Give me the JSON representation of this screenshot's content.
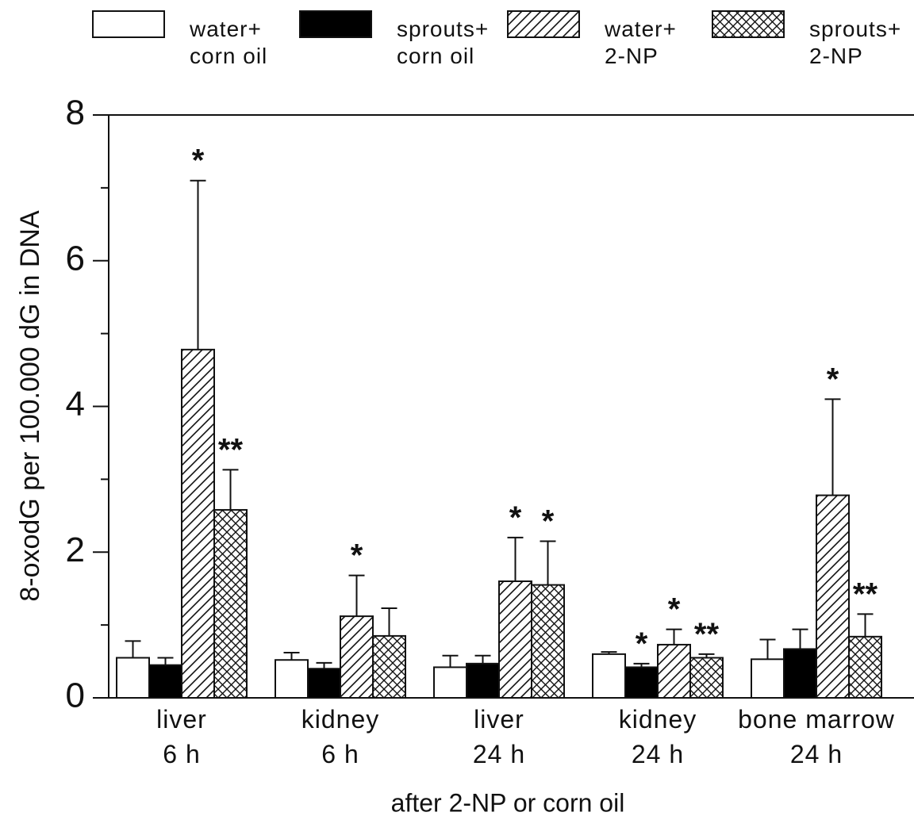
{
  "chart_data": {
    "type": "bar",
    "ylabel": "8-oxodG per 100.000 dG in DNA",
    "xlabel": "after 2-NP or corn oil",
    "categories": [
      "liver\n6 h",
      "kidney\n6 h",
      "liver\n24 h",
      "kidney\n24 h",
      "bone marrow\n24 h"
    ],
    "series": [
      {
        "name": "water+\ncorn oil",
        "color": "#ffffff",
        "pattern": "none",
        "values": [
          0.55,
          0.52,
          0.42,
          0.6,
          0.53
        ],
        "errors": [
          0.23,
          0.1,
          0.16,
          0.03,
          0.27
        ],
        "annotations": [
          null,
          null,
          null,
          null,
          null
        ]
      },
      {
        "name": "sprouts+\ncorn oil",
        "color": "#000000",
        "pattern": "none",
        "values": [
          0.45,
          0.4,
          0.47,
          0.42,
          0.67
        ],
        "errors": [
          0.1,
          0.08,
          0.11,
          0.05,
          0.27
        ],
        "annotations": [
          null,
          null,
          null,
          "*",
          null
        ]
      },
      {
        "name": "water+\n2-NP",
        "color": "#ffffff",
        "pattern": "hatch",
        "values": [
          4.78,
          1.12,
          1.6,
          0.73,
          2.78
        ],
        "errors": [
          2.32,
          0.56,
          0.6,
          0.21,
          1.32
        ],
        "annotations": [
          "*",
          "*",
          "*",
          "*",
          "*"
        ]
      },
      {
        "name": "sprouts+\n2-NP",
        "color": "#ffffff",
        "pattern": "crosshatch",
        "values": [
          2.58,
          0.85,
          1.55,
          0.55,
          0.84
        ],
        "errors": [
          0.55,
          0.38,
          0.6,
          0.05,
          0.31
        ],
        "annotations": [
          "**",
          null,
          "*",
          "**",
          "**"
        ]
      }
    ],
    "ylim": [
      0,
      8
    ],
    "yticks": [
      0,
      2,
      4,
      6,
      8
    ],
    "yminorticks": [
      1,
      3,
      5,
      7
    ]
  }
}
